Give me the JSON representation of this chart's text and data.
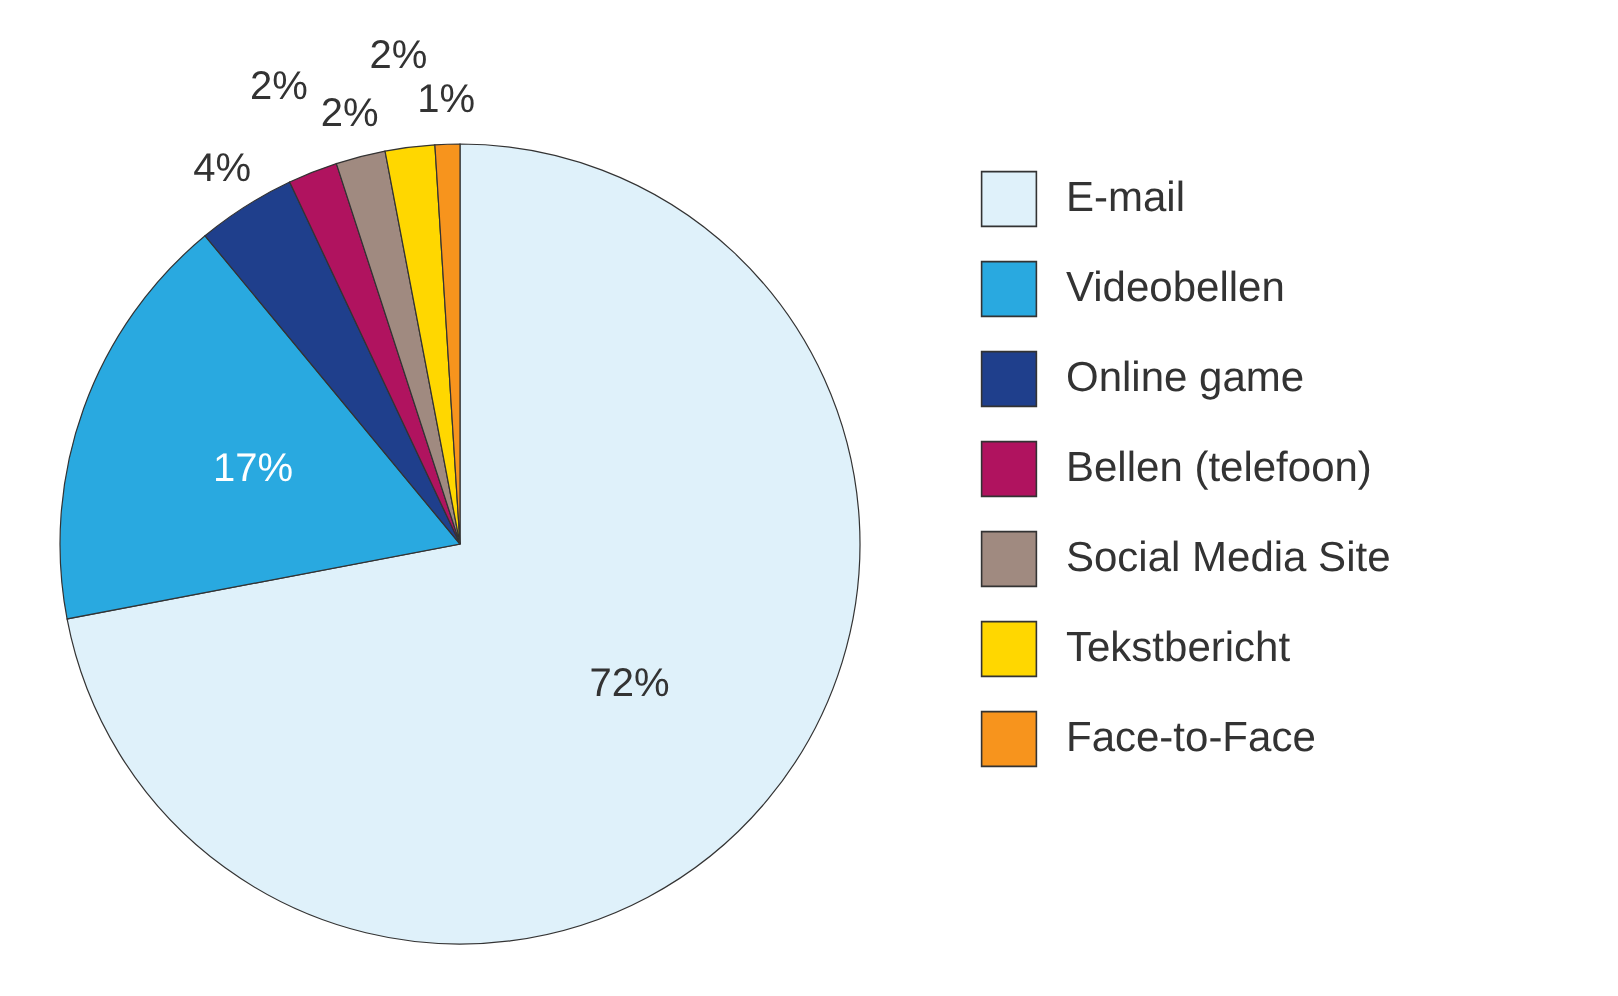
{
  "chart_data": {
    "type": "pie",
    "categories": [
      "E-mail",
      "Videobellen",
      "Online game",
      "Bellen (telefoon)",
      "Social Media Site",
      "Tekstbericht",
      "Face-to-Face"
    ],
    "values": [
      72,
      17,
      4,
      2,
      2,
      2,
      1
    ],
    "colors": [
      "#dff1fa",
      "#29a9e0",
      "#1f3f8c",
      "#b0135f",
      "#a08a80",
      "#ffd700",
      "#f7941d"
    ],
    "value_labels": [
      "72%",
      "17%",
      "4%",
      "2%",
      "2%",
      "2%",
      "1%"
    ],
    "legend": "right"
  }
}
